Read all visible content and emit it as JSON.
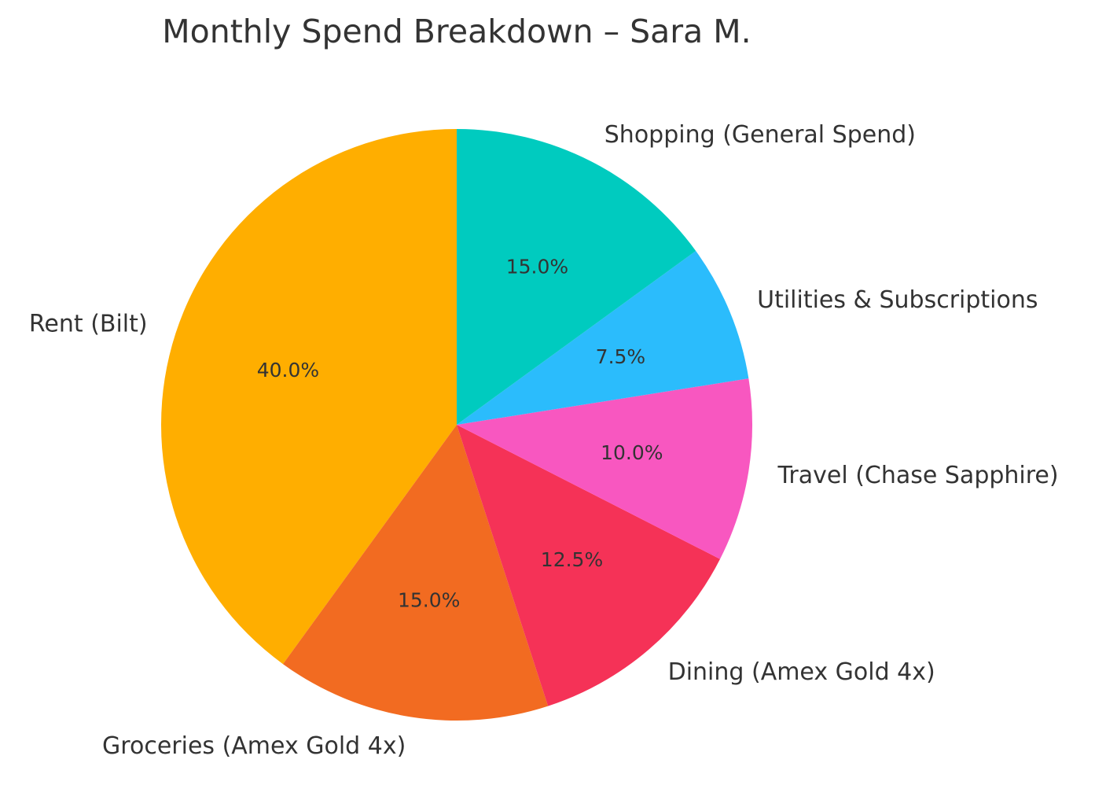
{
  "chart_data": {
    "type": "pie",
    "title": "Monthly Spend Breakdown – Sara M.",
    "start_angle_deg": 90,
    "direction": "counterclockwise",
    "slices": [
      {
        "label": "Rent (Bilt)",
        "value": 40.0,
        "pct_label": "40.0%",
        "color": "#FFAE00"
      },
      {
        "label": "Groceries (Amex Gold 4x)",
        "value": 15.0,
        "pct_label": "15.0%",
        "color": "#F26B21"
      },
      {
        "label": "Dining (Amex Gold 4x)",
        "value": 12.5,
        "pct_label": "12.5%",
        "color": "#F53257"
      },
      {
        "label": "Travel (Chase Sapphire)",
        "value": 10.0,
        "pct_label": "10.0%",
        "color": "#F857C0"
      },
      {
        "label": "Utilities & Subscriptions",
        "value": 7.5,
        "pct_label": "7.5%",
        "color": "#2BBCFC"
      },
      {
        "label": "Shopping (General Spend)",
        "value": 15.0,
        "pct_label": "15.0%",
        "color": "#00CBBF"
      }
    ]
  }
}
